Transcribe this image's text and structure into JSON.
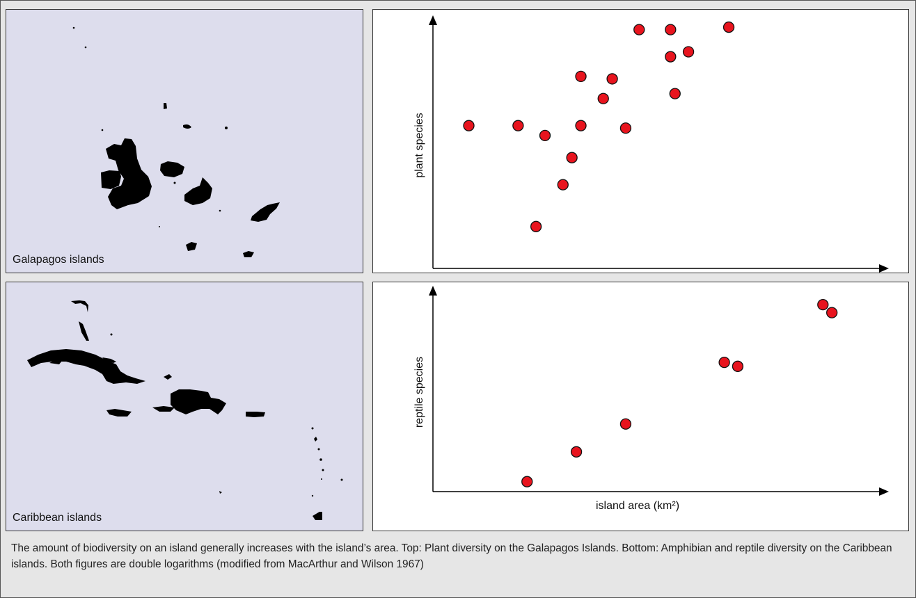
{
  "maps": {
    "top_label": "Galapagos islands",
    "bottom_label": "Caribbean islands"
  },
  "caption": "The amount of biodiversity on an island generally increases with the island’s area. Top: Plant diversity on the Galapagos Islands. Bottom: Amphibian and reptile diversity on the Caribbean islands. Both figures are double logarithms (modified from MacArthur and Wilson 1967)",
  "colors": {
    "point_fill": "#e8141e",
    "point_stroke": "#111111",
    "land": "#000000",
    "sea": "#dddded"
  },
  "chart_data": [
    {
      "type": "scatter",
      "title": "",
      "xlabel": "",
      "ylabel": "plant species",
      "x_scale": "log",
      "y_scale": "log",
      "ticks": "none",
      "grid": false,
      "x": [
        0.08,
        0.19,
        0.23,
        0.25,
        0.29,
        0.31,
        0.33,
        0.33,
        0.38,
        0.4,
        0.43,
        0.46,
        0.53,
        0.53,
        0.54,
        0.57,
        0.66
      ],
      "y": [
        0.58,
        0.58,
        0.17,
        0.54,
        0.34,
        0.45,
        0.78,
        0.58,
        0.69,
        0.77,
        0.57,
        0.97,
        0.86,
        0.97,
        0.71,
        0.88,
        0.98
      ]
    },
    {
      "type": "scatter",
      "title": "",
      "xlabel": "island area (km²)",
      "ylabel": "reptile species",
      "x_scale": "log",
      "y_scale": "log",
      "ticks": "none",
      "grid": false,
      "x": [
        0.21,
        0.32,
        0.43,
        0.65,
        0.68,
        0.87,
        0.89
      ],
      "y": [
        0.05,
        0.2,
        0.34,
        0.65,
        0.63,
        0.94,
        0.9
      ]
    }
  ]
}
